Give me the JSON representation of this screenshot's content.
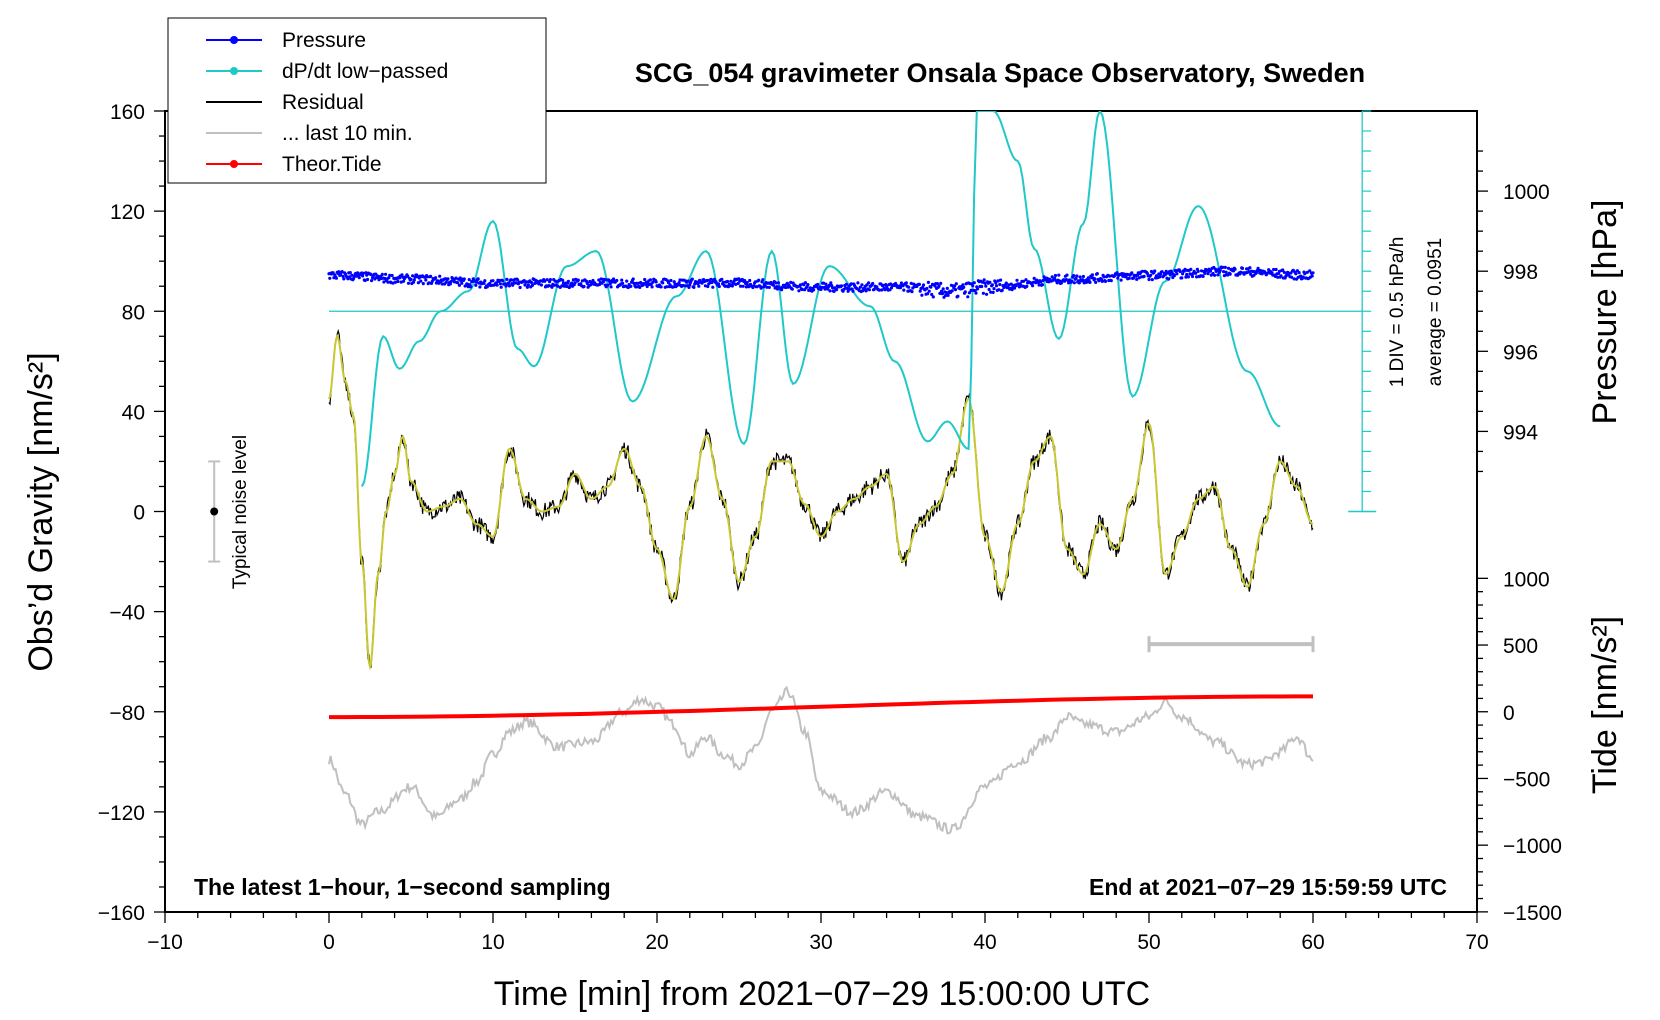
{
  "chart_data": {
    "type": "line",
    "title": "SCG_054 gravimeter Onsala Space Observatory, Sweden",
    "xlabel": "Time [min] from 2021−07−29 15:00:00 UTC",
    "ylabel_left": "Obs’d Gravity [nm/s²]",
    "ylabel_pressure": "Pressure [hPa]",
    "ylabel_tide": "Tide [nm/s²]",
    "xlim": [
      -10,
      70
    ],
    "ylim_left": [
      -160,
      160
    ],
    "x_ticks": [
      -10,
      0,
      10,
      20,
      30,
      40,
      50,
      60,
      70
    ],
    "x_tick_labels": [
      "−10",
      "0",
      "10",
      "20",
      "30",
      "40",
      "50",
      "60",
      "70"
    ],
    "y_ticks_left": [
      160,
      120,
      80,
      40,
      0,
      -40,
      -80,
      -120,
      -160
    ],
    "y_tick_labels_left": [
      "160",
      "120",
      "80",
      "40",
      "0",
      "−40",
      "−80",
      "−120",
      "−160"
    ],
    "pressure_axis": {
      "ticks": [
        1000,
        998,
        996,
        994
      ],
      "tick_labels": [
        "1000",
        "998",
        "996",
        "994"
      ],
      "left_value_at_998": 96,
      "left_units_per_hPa": 16
    },
    "tide_axis": {
      "ticks": [
        1000,
        500,
        0,
        -500,
        -1000,
        -1500
      ],
      "tick_labels": [
        "1000",
        "500",
        "0",
        "−500",
        "−1000",
        "−1500"
      ],
      "left_value_at_0": -80,
      "left_units_per_nms2": 0.0533
    },
    "legend": {
      "placement": "top-left",
      "entries": [
        {
          "label": "Pressure",
          "color": "#0000ff",
          "marker": true
        },
        {
          "label": "dP/dt low−passed",
          "color": "#20c8c8",
          "marker": true
        },
        {
          "label": "Residual",
          "color": "#000000",
          "marker": false
        },
        {
          "label": "... last 10 min.",
          "color": "#c0c0c0",
          "marker": false
        },
        {
          "label": "Theor.Tide",
          "color": "#ff0000",
          "marker": true
        }
      ]
    },
    "annotations": {
      "noise_label": "Typical noise level",
      "noise_range": [
        -20,
        20
      ],
      "noise_x": -7.0,
      "scale_label_1": "1 DIV = 0.5 hPa/h",
      "scale_label_2": "average = 0.0951",
      "scale_baseline": 80,
      "scale_x": 63.0,
      "bottom_left": "The latest 1−hour, 1−second sampling",
      "bottom_right": "End at 2021−07−29 15:59:59 UTC",
      "last10_range_min": [
        50,
        60
      ],
      "last10_bar_y": -53
    },
    "series": [
      {
        "name": "Pressure",
        "color": "#0000ff",
        "unit": "hPa",
        "x": [
          0,
          5,
          10,
          15,
          20,
          25,
          30,
          35,
          38,
          40,
          45,
          50,
          55,
          60
        ],
        "values": [
          997.9,
          997.8,
          997.7,
          997.7,
          997.7,
          997.7,
          997.6,
          997.6,
          997.5,
          997.6,
          997.8,
          997.9,
          998.0,
          997.9
        ]
      },
      {
        "name": "dP/dt low−passed",
        "color": "#20c8c8",
        "unit": "left-axis",
        "x": [
          2,
          3.3,
          4.3,
          5.5,
          6.8,
          8.5,
          10,
          11.5,
          12.5,
          14.5,
          16.3,
          18.5,
          21.2,
          23,
          25.3,
          27,
          28.3,
          30.5,
          33,
          34.5,
          36.5,
          37.7,
          39,
          39.5,
          40.5,
          42,
          43,
          44.5,
          46,
          47,
          49,
          51,
          53,
          56,
          58
        ],
        "values": [
          10,
          70,
          57,
          68,
          80,
          88,
          116,
          65,
          58,
          98,
          104,
          44,
          86,
          104,
          27,
          104,
          51,
          98,
          82,
          60,
          28,
          36,
          25,
          160,
          160,
          140,
          105,
          69,
          115,
          160,
          46,
          92,
          122,
          56,
          34
        ]
      },
      {
        "name": "Residual",
        "color": "#000000",
        "unit": "nm/s²",
        "x": [
          0,
          0.5,
          1,
          1.5,
          2,
          2.5,
          3,
          3.5,
          4,
          4.5,
          5,
          6,
          7,
          8,
          9,
          10,
          11,
          12,
          13,
          14,
          15,
          16,
          17,
          18,
          19,
          20,
          21,
          22,
          23,
          24,
          25,
          26,
          27,
          28,
          29,
          30,
          31,
          32,
          33,
          34,
          35,
          36,
          37,
          38,
          39,
          40,
          41,
          42,
          43,
          44,
          45,
          46,
          47,
          48,
          49,
          50,
          51,
          52,
          53,
          54,
          55,
          56,
          57,
          58,
          59,
          60
        ],
        "values": [
          45,
          70,
          52,
          38,
          -20,
          -62,
          -25,
          0,
          15,
          30,
          12,
          0,
          2,
          5,
          -5,
          -10,
          25,
          5,
          0,
          2,
          15,
          5,
          10,
          25,
          10,
          -15,
          -35,
          2,
          30,
          5,
          -28,
          -10,
          20,
          20,
          3,
          -10,
          0,
          5,
          10,
          15,
          -20,
          -5,
          2,
          15,
          45,
          -10,
          -32,
          -5,
          20,
          30,
          -15,
          -25,
          -5,
          -15,
          5,
          35,
          -25,
          -10,
          5,
          10,
          -15,
          -30,
          -5,
          20,
          10,
          -5
        ]
      },
      {
        "name": "... last 10 min.",
        "color": "#c0c0c0",
        "unit": "left-axis",
        "x": [
          0,
          1,
          2,
          3,
          5,
          6.5,
          8,
          9,
          10,
          11,
          12,
          14,
          16,
          18,
          19,
          20,
          21,
          22,
          23,
          24,
          25,
          26,
          27,
          28,
          29,
          30,
          32,
          34,
          36,
          38,
          40,
          42,
          44,
          45,
          46,
          48,
          50,
          51,
          52,
          54,
          56,
          57,
          58,
          59,
          60
        ],
        "values": [
          -99,
          -113,
          -125,
          -120,
          -110,
          -122,
          -115,
          -108,
          -97,
          -88,
          -84,
          -94,
          -92,
          -80,
          -75,
          -78,
          -85,
          -97,
          -90,
          -97,
          -101,
          -95,
          -80,
          -72,
          -88,
          -112,
          -120,
          -112,
          -122,
          -127,
          -110,
          -100,
          -90,
          -82,
          -85,
          -88,
          -82,
          -76,
          -82,
          -92,
          -101,
          -100,
          -96,
          -90,
          -99
        ]
      },
      {
        "name": "Theor.Tide",
        "color": "#ff0000",
        "unit": "nm/s²",
        "x": [
          0,
          60
        ],
        "values": [
          -40,
          115
        ]
      }
    ]
  }
}
